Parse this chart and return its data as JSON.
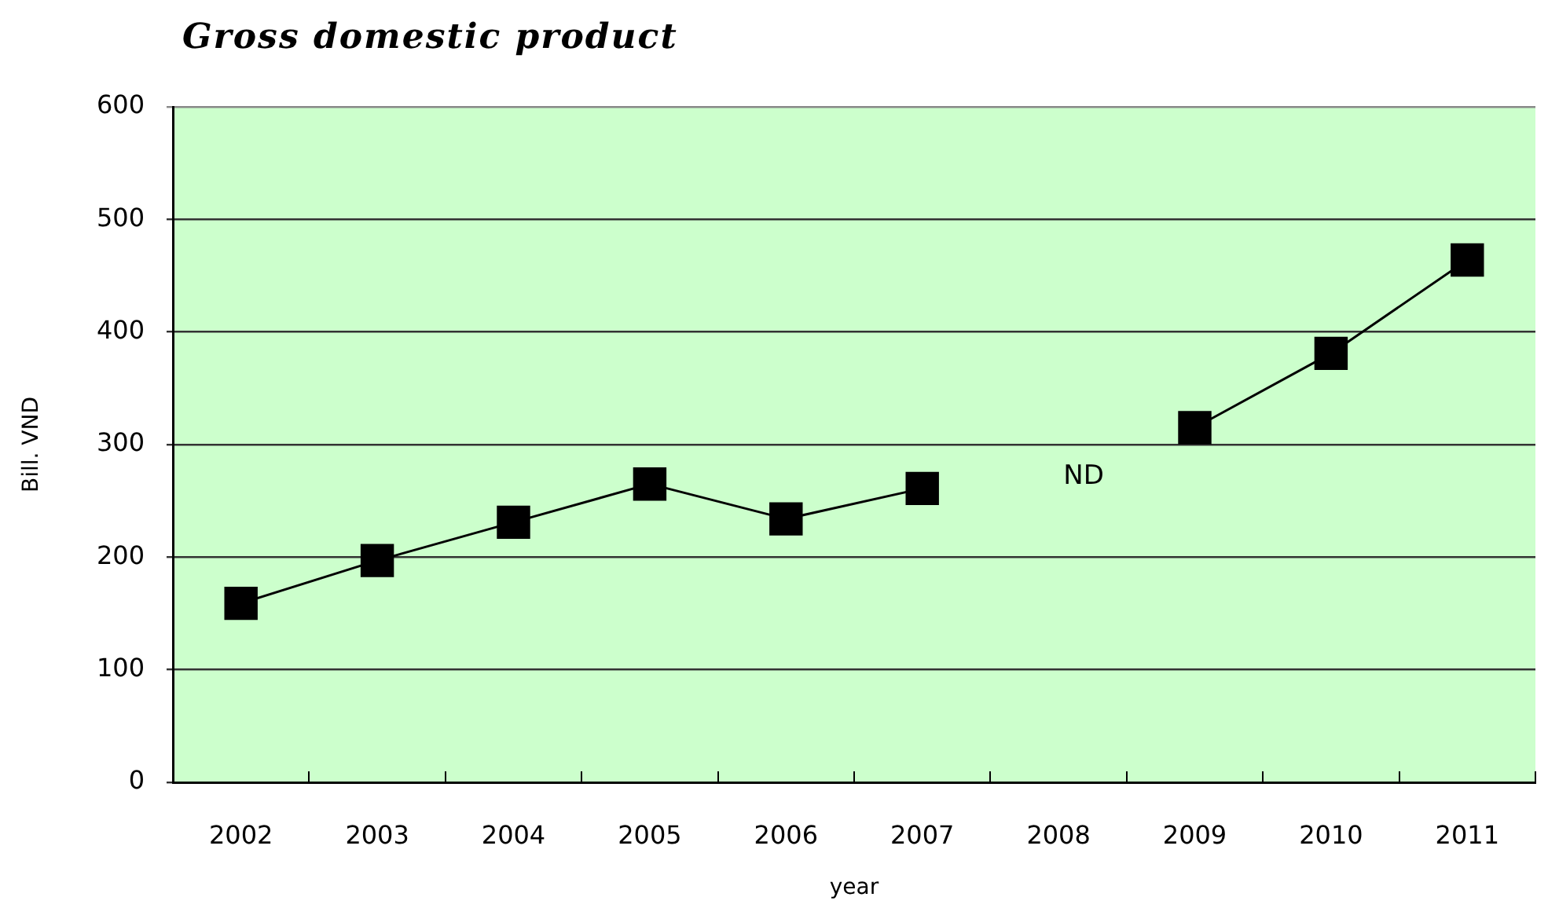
{
  "chart_data": {
    "type": "line",
    "title": "Gross domestic product",
    "xlabel": "year",
    "ylabel": "Bill. VND",
    "categories": [
      "2002",
      "2003",
      "2004",
      "2005",
      "2006",
      "2007",
      "2008",
      "2009",
      "2010",
      "2011"
    ],
    "series": [
      {
        "color": "#000000",
        "values": [
          159,
          197,
          231,
          265,
          234,
          261,
          null,
          315,
          381,
          464
        ]
      }
    ],
    "ylim": [
      0,
      600
    ],
    "yticks": [
      0,
      100,
      200,
      300,
      400,
      500,
      600
    ],
    "grid": "y",
    "marker": "square",
    "line_style": "solid",
    "annotations": [
      "ND"
    ]
  }
}
